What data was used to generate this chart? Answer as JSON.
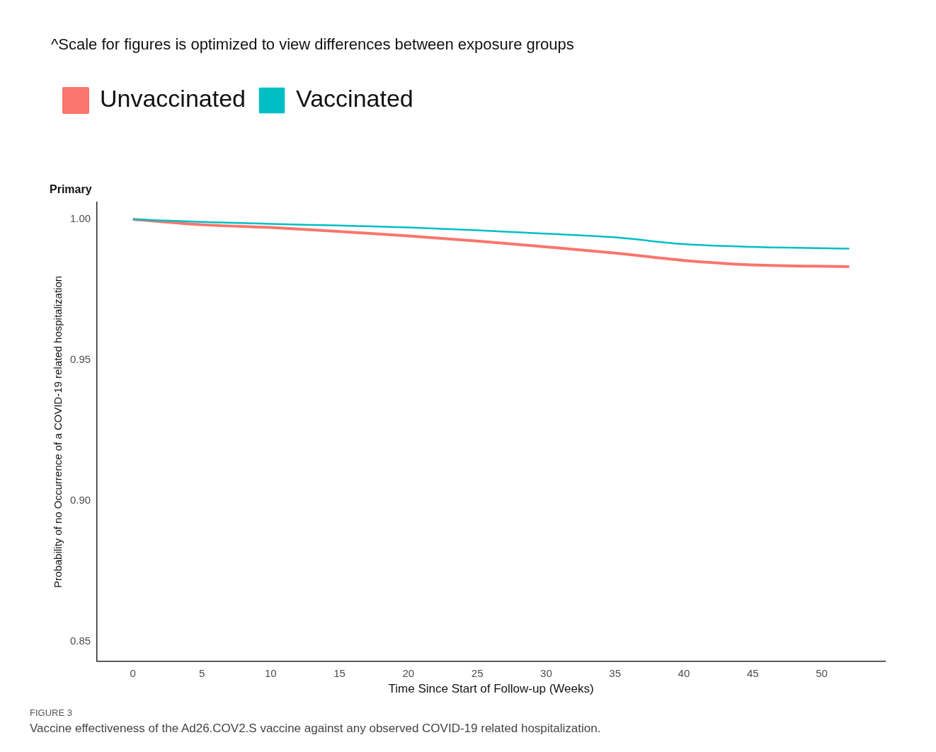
{
  "chart_data": {
    "type": "line",
    "title": "Primary",
    "xlabel": "Time Since Start of Follow-up (Weeks)",
    "ylabel": "Probability of no Occurrence of a COVID-19 related hospitalization",
    "annotations": [
      "^Scale for figures is optimized to view differences between exposure groups",
      "FIGURE 3",
      "Vaccine effectiveness of the Ad26.COV2.S vaccine against any observed COVID-19 related hospitalization."
    ],
    "xlim": [
      -2.6,
      54.6
    ],
    "xticks": [
      0,
      5,
      10,
      15,
      20,
      25,
      30,
      35,
      40,
      45,
      50
    ],
    "ylim": [
      0.843,
      1.006
    ],
    "yticks": [
      0.85,
      {
        "value": 0.9,
        "label": "0.90"
      },
      0.95,
      {
        "value": 1,
        "label": "1.00"
      }
    ],
    "grid": false,
    "legend": "top left",
    "marker": "none",
    "line_style": "solid",
    "series": [
      {
        "name": "Unvaccinated",
        "color": "#f8766d",
        "x": [
          0,
          5,
          10,
          15,
          20,
          25,
          30,
          35,
          40,
          45,
          52
        ],
        "values": [
          1.0,
          0.9981,
          0.9971,
          0.9957,
          0.9941,
          0.9923,
          0.9902,
          0.988,
          0.9854,
          0.9838,
          0.9832
        ]
      },
      {
        "name": "Vaccinated",
        "color": "#00bfc4",
        "x": [
          0,
          5,
          10,
          15,
          20,
          25,
          30,
          35,
          40,
          45,
          52
        ],
        "values": [
          1.0,
          0.9991,
          0.9984,
          0.9978,
          0.9971,
          0.9961,
          0.9949,
          0.9936,
          0.9912,
          0.9902,
          0.9896
        ]
      }
    ]
  }
}
